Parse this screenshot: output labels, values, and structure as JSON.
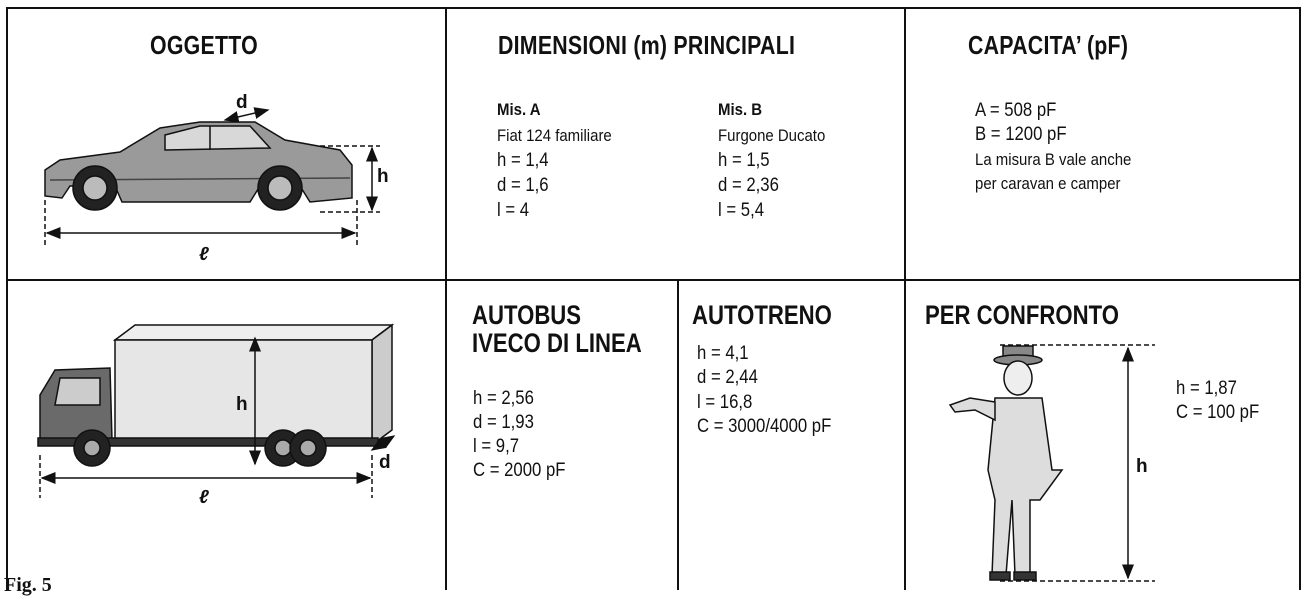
{
  "header": {
    "object": "OGGETTO",
    "dimensions": "DIMENSIONI (m) PRINCIPALI",
    "capacity": "CAPACITA’ (pF)"
  },
  "car": {
    "labels": [
      "d",
      "h",
      "ℓ"
    ]
  },
  "mis_a": {
    "title": "Mis. A",
    "lines": [
      "Fiat 124 familiare",
      "h = 1,4",
      "d = 1,6",
      "l = 4"
    ]
  },
  "mis_b": {
    "title": "Mis. B",
    "lines": [
      "Furgone Ducato",
      "h = 1,5",
      "d = 2,36",
      "l = 5,4"
    ]
  },
  "capacity": {
    "lines": [
      "A = 508 pF",
      "B = 1200 pF",
      "La misura B vale anche",
      "per caravan e camper"
    ]
  },
  "truck": {
    "labels": [
      "h",
      "ℓ",
      "d"
    ]
  },
  "bus": {
    "title": [
      "AUTOBUS",
      "IVECO DI LINEA"
    ],
    "lines": [
      "h = 2,56",
      "d = 1,93",
      "l = 9,7",
      "C = 2000 pF"
    ]
  },
  "autotreno": {
    "title": "AUTOTRENO",
    "lines": [
      "h = 4,1",
      "d = 2,44",
      "l = 16,8",
      "C = 3000/4000 pF"
    ]
  },
  "confronto": {
    "title": "PER CONFRONTO",
    "lines": [
      "h = 1,87",
      "C = 100 pF"
    ],
    "label": "h"
  },
  "caption": "Fig. 5"
}
